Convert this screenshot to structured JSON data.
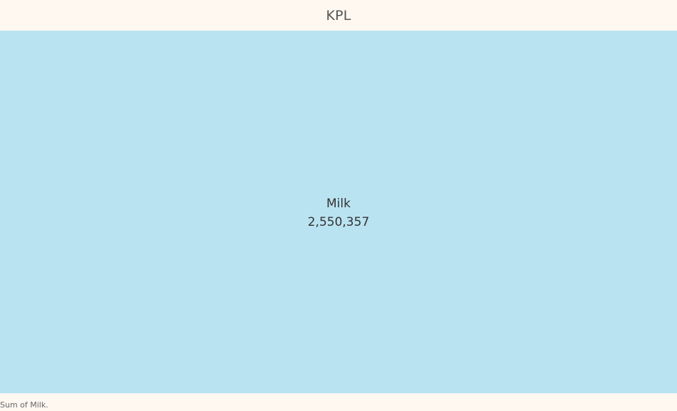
{
  "header": {
    "title": "KPL"
  },
  "tile": {
    "label": "Milk",
    "value": "2,550,357",
    "fill_color": "#bae3f1"
  },
  "caption": "Sum of Milk."
}
